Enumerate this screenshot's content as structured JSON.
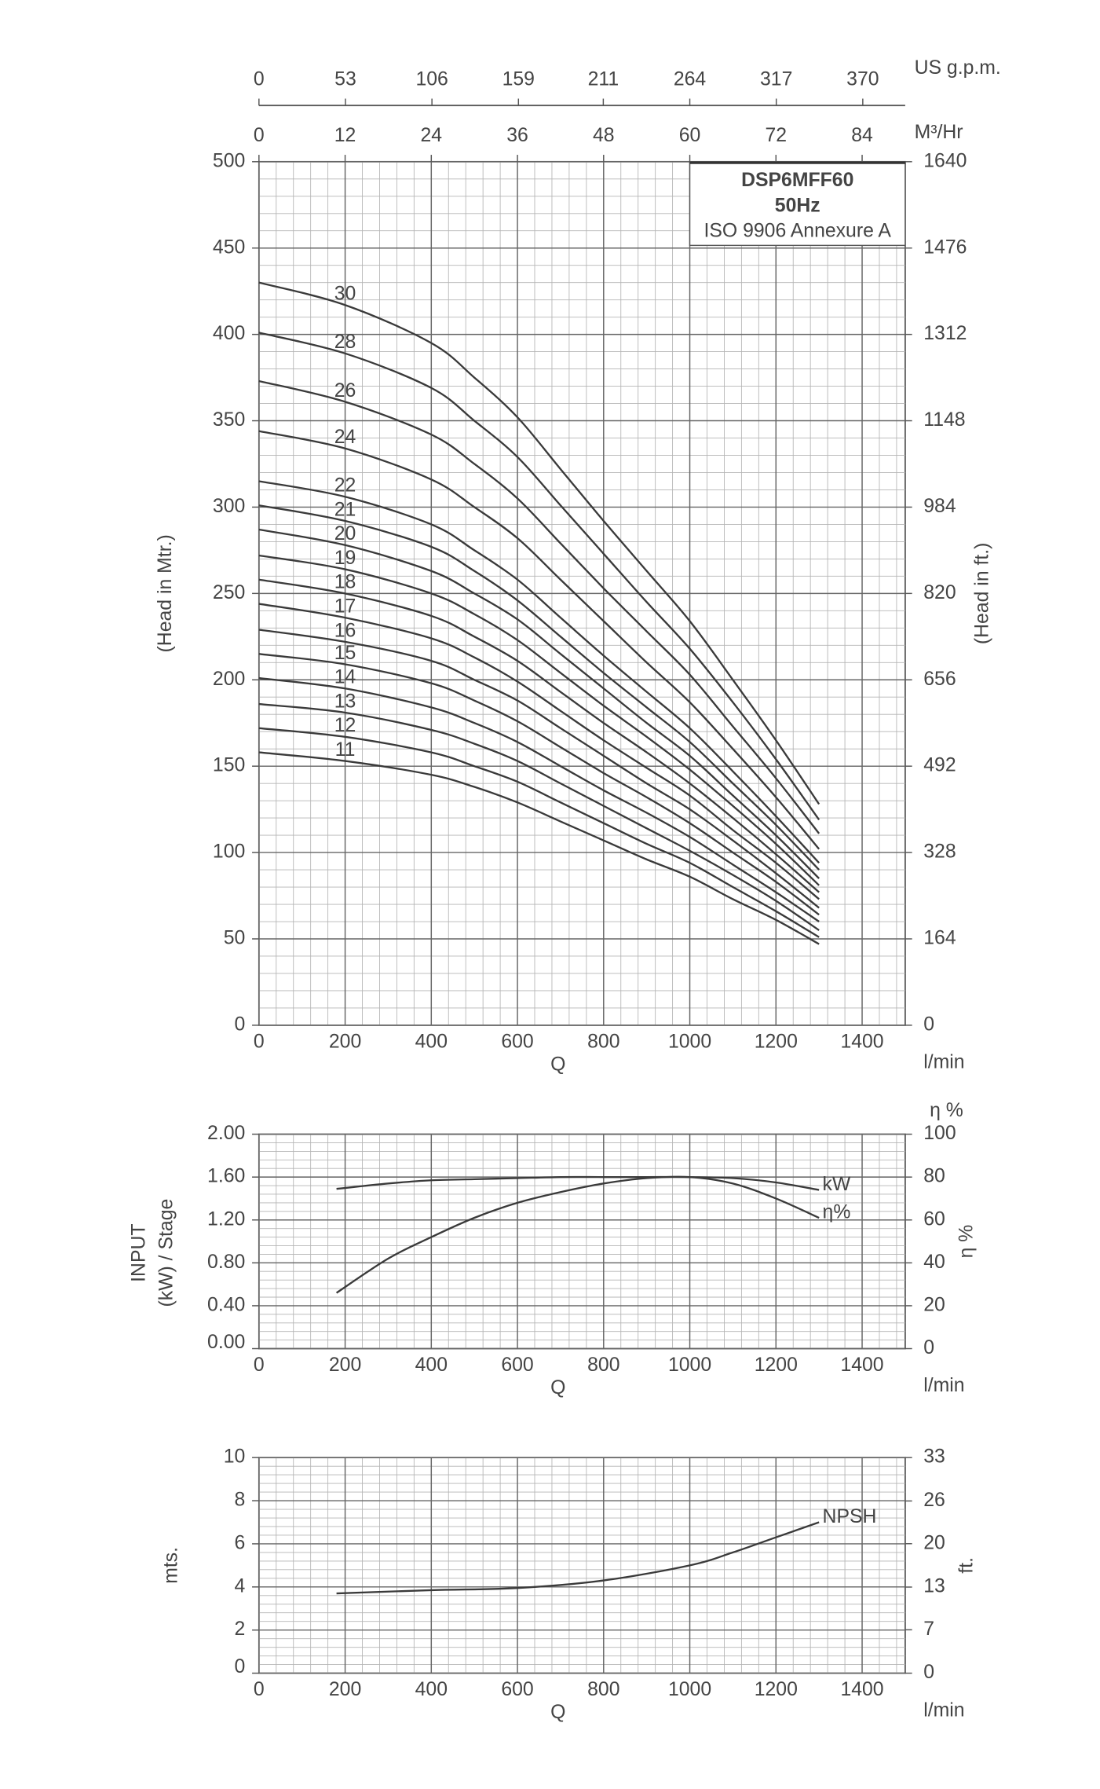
{
  "chart_data": [
    {
      "type": "line",
      "x_label": "Q",
      "x_unit": "l/min",
      "y_label": "(Head in Mtr.)",
      "y2_label": "(Head in ft.)",
      "box_lines": [
        "DSP6MFF60",
        "50Hz",
        "ISO 9906 Annexure A"
      ],
      "series_label_position": "start",
      "x": [
        0,
        200,
        400,
        500,
        600,
        700,
        800,
        900,
        1000,
        1100,
        1200,
        1300
      ],
      "series": [
        {
          "name": "30",
          "color": "#3a3a3a",
          "values": [
            430,
            417,
            395,
            375,
            352,
            322,
            292,
            263,
            234,
            200,
            165,
            128
          ]
        },
        {
          "name": "28",
          "color": "#3a3a3a",
          "values": [
            401,
            389,
            369,
            350,
            329,
            301,
            273,
            245,
            218,
            187,
            154,
            119
          ]
        },
        {
          "name": "26",
          "color": "#3a3a3a",
          "values": [
            373,
            361,
            342,
            325,
            305,
            279,
            253,
            228,
            203,
            173,
            143,
            111
          ]
        },
        {
          "name": "24",
          "color": "#3a3a3a",
          "values": [
            344,
            334,
            316,
            300,
            282,
            258,
            234,
            210,
            187,
            160,
            132,
            102
          ]
        },
        {
          "name": "22",
          "color": "#3a3a3a",
          "values": [
            315,
            306,
            290,
            275,
            258,
            236,
            214,
            193,
            172,
            147,
            121,
            94
          ]
        },
        {
          "name": "21",
          "color": "#3a3a3a",
          "values": [
            301,
            292,
            277,
            263,
            246,
            225,
            204,
            184,
            164,
            140,
            116,
            90
          ]
        },
        {
          "name": "20",
          "color": "#3a3a3a",
          "values": [
            287,
            278,
            263,
            250,
            235,
            215,
            195,
            175,
            156,
            133,
            110,
            85
          ]
        },
        {
          "name": "19",
          "color": "#3a3a3a",
          "values": [
            272,
            264,
            250,
            238,
            223,
            204,
            185,
            167,
            148,
            127,
            105,
            81
          ]
        },
        {
          "name": "18",
          "color": "#3a3a3a",
          "values": [
            258,
            250,
            237,
            225,
            211,
            193,
            175,
            158,
            140,
            120,
            99,
            77
          ]
        },
        {
          "name": "17",
          "color": "#3a3a3a",
          "values": [
            244,
            236,
            224,
            213,
            199,
            182,
            165,
            149,
            133,
            113,
            94,
            73
          ]
        },
        {
          "name": "16",
          "color": "#3a3a3a",
          "values": [
            229,
            222,
            211,
            200,
            188,
            172,
            156,
            140,
            125,
            107,
            88,
            68
          ]
        },
        {
          "name": "15",
          "color": "#3a3a3a",
          "values": [
            215,
            209,
            198,
            188,
            176,
            161,
            146,
            132,
            117,
            100,
            83,
            64
          ]
        },
        {
          "name": "14",
          "color": "#3a3a3a",
          "values": [
            201,
            195,
            184,
            175,
            164,
            150,
            136,
            123,
            109,
            93,
            77,
            60
          ]
        },
        {
          "name": "13",
          "color": "#3a3a3a",
          "values": [
            186,
            181,
            171,
            163,
            153,
            140,
            127,
            114,
            101,
            87,
            72,
            55
          ]
        },
        {
          "name": "12",
          "color": "#3a3a3a",
          "values": [
            172,
            167,
            158,
            150,
            141,
            129,
            117,
            105,
            94,
            80,
            66,
            51
          ]
        },
        {
          "name": "11",
          "color": "#3a3a3a",
          "values": [
            158,
            153,
            145,
            138,
            129,
            118,
            107,
            96,
            86,
            73,
            61,
            47
          ]
        }
      ],
      "xlim": [
        0,
        1500
      ],
      "xticks": [
        0,
        200,
        400,
        600,
        800,
        1000,
        1200,
        1400
      ],
      "ylim": [
        0,
        500
      ],
      "yticks": [
        0,
        50,
        100,
        150,
        200,
        250,
        300,
        350,
        400,
        450,
        500
      ],
      "y2lim": [
        0,
        1640
      ],
      "y2ticks": [
        0,
        164,
        328,
        492,
        656,
        820,
        984,
        1148,
        1312,
        1476,
        1640
      ],
      "top_axes": [
        {
          "label": "US g.p.m.",
          "lim": [
            0,
            396
          ],
          "ticks": [
            0,
            53,
            106,
            159,
            211,
            264,
            317,
            370
          ]
        },
        {
          "label": "M³/Hr",
          "lim": [
            0,
            90
          ],
          "ticks": [
            0,
            12,
            24,
            36,
            48,
            60,
            72,
            84
          ]
        }
      ],
      "grid": true
    },
    {
      "type": "line",
      "x_label": "Q",
      "x_unit": "l/min",
      "y_label": [
        "INPUT",
        "(kW) / Stage"
      ],
      "y2_label": "η %",
      "y2_unit_label": "η %",
      "series_label_position": "end",
      "x": [
        180,
        300,
        400,
        500,
        600,
        700,
        800,
        900,
        1000,
        1100,
        1200,
        1300
      ],
      "series": [
        {
          "name": "kW",
          "color": "#3a3a3a",
          "values": [
            1.49,
            1.54,
            1.57,
            1.58,
            1.59,
            1.6,
            1.6,
            1.6,
            1.6,
            1.59,
            1.55,
            1.48
          ]
        },
        {
          "name": "η%",
          "color": "#3a3a3a",
          "axis": "y2",
          "values": [
            26,
            42,
            52,
            61,
            68,
            73,
            77,
            79.5,
            80,
            77,
            70,
            61
          ]
        }
      ],
      "xlim": [
        0,
        1500
      ],
      "xticks": [
        0,
        200,
        400,
        600,
        800,
        1000,
        1200,
        1400
      ],
      "ylim": [
        0,
        2
      ],
      "yticks": [
        {
          "value": 0,
          "label": "0.00"
        },
        {
          "value": 0.4,
          "label": "0.40"
        },
        {
          "value": 0.8,
          "label": "0.80"
        },
        {
          "value": 1.2,
          "label": "1.20"
        },
        {
          "value": 1.6,
          "label": "1.60"
        },
        {
          "value": 2,
          "label": "2.00"
        }
      ],
      "y2lim": [
        0,
        100
      ],
      "y2ticks": [
        0,
        20,
        40,
        60,
        80,
        100
      ],
      "grid": true
    },
    {
      "type": "line",
      "x_label": "Q",
      "x_unit": "l/min",
      "y_label": "mts.",
      "y2_label": "ft.",
      "series_label_position": "end",
      "x": [
        180,
        400,
        600,
        800,
        1000,
        1100,
        1200,
        1300
      ],
      "series": [
        {
          "name": "NPSH",
          "color": "#3a3a3a",
          "values": [
            3.7,
            3.85,
            3.95,
            4.3,
            5.0,
            5.6,
            6.3,
            7.0
          ]
        }
      ],
      "xlim": [
        0,
        1500
      ],
      "xticks": [
        0,
        200,
        400,
        600,
        800,
        1000,
        1200,
        1400
      ],
      "ylim": [
        0,
        10
      ],
      "yticks": [
        0,
        2,
        4,
        6,
        8,
        10
      ],
      "y2lim": [
        0,
        32.8
      ],
      "y2ticks": [
        0,
        {
          "value": 6.6,
          "label": "7"
        },
        {
          "value": 13.1,
          "label": "13"
        },
        {
          "value": 19.7,
          "label": "20"
        },
        {
          "value": 26.2,
          "label": "26"
        },
        {
          "value": 32.8,
          "label": "33"
        }
      ],
      "grid": true
    }
  ]
}
